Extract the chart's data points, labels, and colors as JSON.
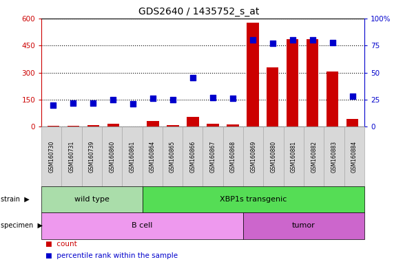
{
  "title": "GDS2640 / 1435752_s_at",
  "samples": [
    "GSM160730",
    "GSM160731",
    "GSM160739",
    "GSM160860",
    "GSM160861",
    "GSM160864",
    "GSM160865",
    "GSM160866",
    "GSM160867",
    "GSM160868",
    "GSM160869",
    "GSM160880",
    "GSM160881",
    "GSM160882",
    "GSM160883",
    "GSM160884"
  ],
  "counts": [
    5,
    5,
    8,
    15,
    3,
    30,
    8,
    55,
    18,
    12,
    578,
    330,
    485,
    485,
    305,
    45
  ],
  "percentiles": [
    20,
    22,
    22,
    25,
    21,
    26,
    25,
    45,
    27,
    26,
    80,
    77,
    80,
    80,
    78,
    28
  ],
  "ylim_left": [
    0,
    600
  ],
  "ylim_right": [
    0,
    100
  ],
  "yticks_left": [
    0,
    150,
    300,
    450,
    600
  ],
  "yticks_right": [
    0,
    25,
    50,
    75,
    100
  ],
  "bar_color": "#cc0000",
  "scatter_color": "#0000cc",
  "bg_color": "#ffffff",
  "strain_groups": [
    {
      "label": "wild type",
      "start": 0,
      "end": 5,
      "color": "#aaddaa"
    },
    {
      "label": "XBP1s transgenic",
      "start": 5,
      "end": 16,
      "color": "#55dd55"
    }
  ],
  "specimen_groups": [
    {
      "label": "B cell",
      "start": 0,
      "end": 10,
      "color": "#ee99ee"
    },
    {
      "label": "tumor",
      "start": 10,
      "end": 16,
      "color": "#cc66cc"
    }
  ],
  "xlabel_color": "#cc0000",
  "ylabel_right_color": "#0000cc",
  "title_color": "#000000",
  "title_fontsize": 10,
  "tick_fontsize": 7.5,
  "bar_width": 0.6,
  "scatter_size": 28
}
